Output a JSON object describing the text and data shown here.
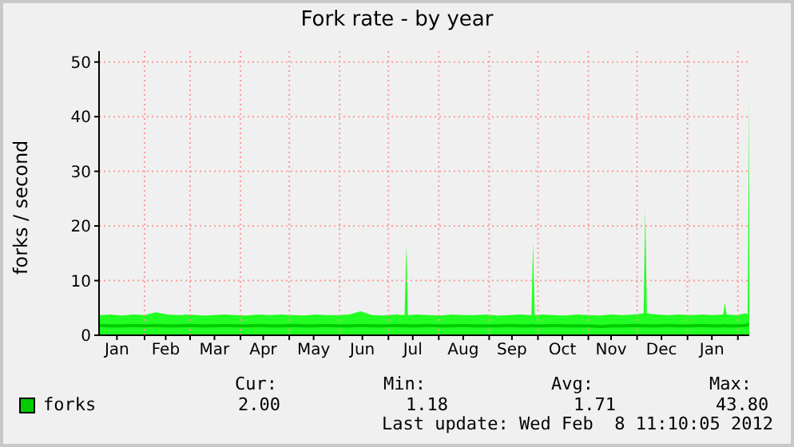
{
  "chart_data": {
    "type": "area",
    "title": "Fork rate - by year",
    "ylabel": "forks / second",
    "x": [
      "2011-01-04",
      "2011-01-11",
      "2011-01-18",
      "2011-01-25",
      "2011-02-01",
      "2011-02-08",
      "2011-02-15",
      "2011-02-22",
      "2011-03-01",
      "2011-03-08",
      "2011-03-15",
      "2011-03-22",
      "2011-03-29",
      "2011-04-05",
      "2011-04-12",
      "2011-04-19",
      "2011-04-26",
      "2011-05-03",
      "2011-05-10",
      "2011-05-17",
      "2011-05-24",
      "2011-05-31",
      "2011-06-07",
      "2011-06-14",
      "2011-06-21",
      "2011-06-28",
      "2011-07-05",
      "2011-07-11",
      "2011-07-12",
      "2011-07-13",
      "2011-07-19",
      "2011-07-26",
      "2011-08-02",
      "2011-08-09",
      "2011-08-16",
      "2011-08-23",
      "2011-08-30",
      "2011-09-06",
      "2011-09-13",
      "2011-09-20",
      "2011-09-27",
      "2011-09-28",
      "2011-09-29",
      "2011-10-04",
      "2011-10-11",
      "2011-10-18",
      "2011-10-25",
      "2011-11-01",
      "2011-11-08",
      "2011-11-15",
      "2011-11-22",
      "2011-11-29",
      "2011-12-05",
      "2011-12-06",
      "2011-12-07",
      "2011-12-13",
      "2011-12-20",
      "2011-12-27",
      "2012-01-03",
      "2012-01-10",
      "2012-01-17",
      "2012-01-23",
      "2012-01-24",
      "2012-01-25",
      "2012-01-31",
      "2012-02-06",
      "2012-02-07",
      "2012-02-08"
    ],
    "series": [
      {
        "color": "#22ff22",
        "values": [
          3.7,
          3.8,
          3.6,
          3.8,
          3.7,
          4.2,
          3.8,
          3.7,
          3.8,
          3.6,
          3.7,
          3.8,
          3.7,
          3.6,
          3.8,
          3.7,
          3.8,
          3.7,
          3.6,
          3.8,
          3.7,
          3.7,
          3.8,
          4.4,
          3.7,
          3.6,
          3.8,
          3.7,
          16.5,
          3.7,
          3.8,
          3.7,
          3.6,
          3.8,
          3.7,
          3.7,
          3.8,
          3.6,
          3.7,
          3.8,
          3.7,
          17,
          3.7,
          3.8,
          3.7,
          3.6,
          3.8,
          3.7,
          3.6,
          3.8,
          3.7,
          3.8,
          4.0,
          23,
          4.0,
          3.8,
          3.7,
          3.8,
          3.7,
          3.8,
          3.7,
          3.8,
          6,
          3.8,
          3.7,
          4.0,
          3.8,
          43.8
        ]
      },
      {
        "type": "line",
        "name": "forks",
        "color": "#00cc00",
        "values": [
          1.8,
          1.7,
          1.7,
          1.8,
          1.7,
          1.8,
          1.7,
          1.7,
          1.8,
          1.7,
          1.7,
          1.8,
          1.7,
          1.7,
          1.8,
          1.7,
          1.7,
          1.8,
          1.7,
          1.7,
          1.8,
          1.7,
          1.7,
          1.8,
          1.7,
          1.7,
          1.8,
          1.7,
          1.8,
          1.7,
          1.7,
          1.8,
          1.7,
          1.7,
          1.8,
          1.7,
          1.7,
          1.7,
          1.8,
          1.7,
          1.7,
          1.8,
          1.7,
          1.7,
          1.8,
          1.7,
          1.7,
          1.7,
          1.6,
          1.7,
          1.7,
          1.8,
          1.7,
          1.8,
          1.7,
          1.7,
          1.8,
          1.7,
          1.7,
          1.8,
          1.7,
          1.7,
          1.8,
          1.7,
          1.7,
          1.8,
          1.9,
          2.0
        ]
      }
    ],
    "xlim": [
      "2011-01-04",
      "2012-02-08"
    ],
    "xticks": [
      {
        "value": "2011-01-15",
        "label": "Jan"
      },
      {
        "value": "2011-02-01",
        "label": null
      },
      {
        "value": "2011-02-14",
        "label": "Feb"
      },
      {
        "value": "2011-03-01",
        "label": null
      },
      {
        "value": "2011-03-16",
        "label": "Mar"
      },
      {
        "value": "2011-04-01",
        "label": null
      },
      {
        "value": "2011-04-15",
        "label": "Apr"
      },
      {
        "value": "2011-05-01",
        "label": null
      },
      {
        "value": "2011-05-16",
        "label": "May"
      },
      {
        "value": "2011-06-01",
        "label": null
      },
      {
        "value": "2011-06-15",
        "label": "Jun"
      },
      {
        "value": "2011-07-01",
        "label": null
      },
      {
        "value": "2011-07-16",
        "label": "Jul"
      },
      {
        "value": "2011-08-01",
        "label": null
      },
      {
        "value": "2011-08-16",
        "label": "Aug"
      },
      {
        "value": "2011-09-01",
        "label": null
      },
      {
        "value": "2011-09-15",
        "label": "Sep"
      },
      {
        "value": "2011-10-01",
        "label": null
      },
      {
        "value": "2011-10-16",
        "label": "Oct"
      },
      {
        "value": "2011-11-01",
        "label": null
      },
      {
        "value": "2011-11-15",
        "label": "Nov"
      },
      {
        "value": "2011-12-01",
        "label": null
      },
      {
        "value": "2011-12-16",
        "label": "Dec"
      },
      {
        "value": "2012-01-01",
        "label": null
      },
      {
        "value": "2012-01-16",
        "label": "Jan"
      },
      {
        "value": "2012-02-01",
        "label": null
      }
    ],
    "ylim": [
      0,
      52
    ],
    "yticks": [
      0,
      10,
      20,
      30,
      40,
      50
    ],
    "grid": true,
    "legend": "bottom left",
    "annotations": [
      "Cur:",
      "Min:",
      "Avg:",
      "Max:",
      "2.00",
      "1.18",
      "1.71",
      "43.80",
      "Last update: Wed Feb  8 11:10:05 2012"
    ]
  }
}
